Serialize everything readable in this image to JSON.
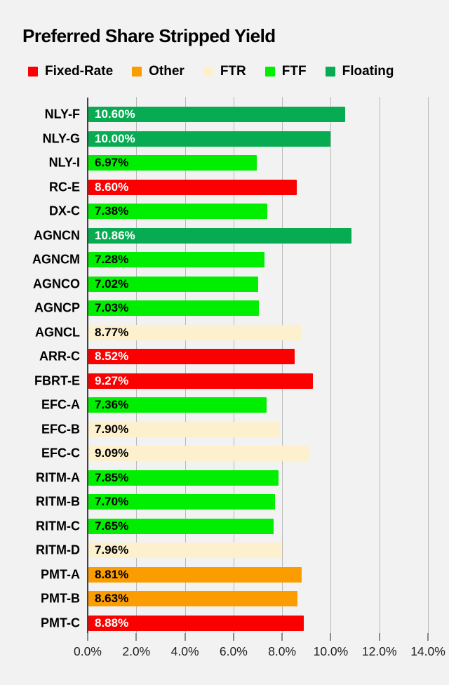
{
  "title": "Preferred Share Stripped Yield",
  "background_color": "#f2f2f2",
  "legend": {
    "items": [
      {
        "label": "Fixed-Rate",
        "series": "Fixed-Rate"
      },
      {
        "label": "Other",
        "series": "Other"
      },
      {
        "label": "FTR",
        "series": "FTR"
      },
      {
        "label": "FTF",
        "series": "FTF"
      },
      {
        "label": "Floating",
        "series": "Floating"
      }
    ]
  },
  "axis_style": {
    "gridline_color": "#b9b9b9",
    "axis_line_color": "#424242",
    "tick_color": "#8a8a8a",
    "tick_label_color": "#1f1f1f"
  },
  "chart_data": {
    "type": "bar",
    "orientation": "horizontal",
    "title": "Preferred Share Stripped Yield",
    "xlabel": "",
    "ylabel": "",
    "xlim": [
      0,
      14
    ],
    "grid": true,
    "legend_position": "top",
    "x_ticks": [
      {
        "value": 0,
        "label": "0.0%"
      },
      {
        "value": 2,
        "label": "2.0%"
      },
      {
        "value": 4,
        "label": "4.0%"
      },
      {
        "value": 6,
        "label": "6.0%"
      },
      {
        "value": 8,
        "label": "8.0%"
      },
      {
        "value": 10,
        "label": "10.0%"
      },
      {
        "value": 12,
        "label": "12.0%"
      },
      {
        "value": 14,
        "label": "14.0%"
      }
    ],
    "series_colors": {
      "Fixed-Rate": {
        "bar": "#fa0000",
        "text": "#ffffff"
      },
      "Other": {
        "bar": "#fb9d00",
        "text": "#000000"
      },
      "FTR": {
        "bar": "#fdf0cd",
        "text": "#000000"
      },
      "FTF": {
        "bar": "#00ee00",
        "text": "#000000"
      },
      "Floating": {
        "bar": "#06ab52",
        "text": "#ffffff"
      }
    },
    "bars": [
      {
        "category": "NLY-F",
        "value": 10.6,
        "label": "10.60%",
        "series": "Floating"
      },
      {
        "category": "NLY-G",
        "value": 10.0,
        "label": "10.00%",
        "series": "Floating"
      },
      {
        "category": "NLY-I",
        "value": 6.97,
        "label": "6.97%",
        "series": "FTF"
      },
      {
        "category": "RC-E",
        "value": 8.6,
        "label": "8.60%",
        "series": "Fixed-Rate"
      },
      {
        "category": "DX-C",
        "value": 7.38,
        "label": "7.38%",
        "series": "FTF"
      },
      {
        "category": "AGNCN",
        "value": 10.86,
        "label": "10.86%",
        "series": "Floating"
      },
      {
        "category": "AGNCM",
        "value": 7.28,
        "label": "7.28%",
        "series": "FTF"
      },
      {
        "category": "AGNCO",
        "value": 7.02,
        "label": "7.02%",
        "series": "FTF"
      },
      {
        "category": "AGNCP",
        "value": 7.03,
        "label": "7.03%",
        "series": "FTF"
      },
      {
        "category": "AGNCL",
        "value": 8.77,
        "label": "8.77%",
        "series": "FTR"
      },
      {
        "category": "ARR-C",
        "value": 8.52,
        "label": "8.52%",
        "series": "Fixed-Rate"
      },
      {
        "category": "FBRT-E",
        "value": 9.27,
        "label": "9.27%",
        "series": "Fixed-Rate"
      },
      {
        "category": "EFC-A",
        "value": 7.36,
        "label": "7.36%",
        "series": "FTF"
      },
      {
        "category": "EFC-B",
        "value": 7.9,
        "label": "7.90%",
        "series": "FTR"
      },
      {
        "category": "EFC-C",
        "value": 9.09,
        "label": "9.09%",
        "series": "FTR"
      },
      {
        "category": "RITM-A",
        "value": 7.85,
        "label": "7.85%",
        "series": "FTF"
      },
      {
        "category": "RITM-B",
        "value": 7.7,
        "label": "7.70%",
        "series": "FTF"
      },
      {
        "category": "RITM-C",
        "value": 7.65,
        "label": "7.65%",
        "series": "FTF"
      },
      {
        "category": "RITM-D",
        "value": 7.96,
        "label": "7.96%",
        "series": "FTR"
      },
      {
        "category": "PMT-A",
        "value": 8.81,
        "label": "8.81%",
        "series": "Other"
      },
      {
        "category": "PMT-B",
        "value": 8.63,
        "label": "8.63%",
        "series": "Other"
      },
      {
        "category": "PMT-C",
        "value": 8.88,
        "label": "8.88%",
        "series": "Fixed-Rate"
      }
    ]
  }
}
